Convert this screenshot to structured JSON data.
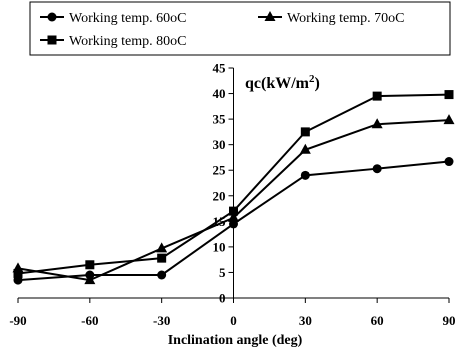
{
  "chart_data": {
    "type": "line",
    "title": "",
    "xlabel": "Inclination angle (deg)",
    "ylabel": "",
    "annotation": {
      "prefix": "qc(kW/m",
      "sup": "2",
      "suffix": ")"
    },
    "x": [
      -90,
      -60,
      -30,
      0,
      30,
      60,
      90
    ],
    "xlim": [
      -90,
      90
    ],
    "ylim": [
      0,
      45
    ],
    "xticks": [
      -90,
      -60,
      -30,
      0,
      30,
      60,
      90
    ],
    "yticks": [
      0,
      5,
      10,
      15,
      20,
      25,
      30,
      35,
      40,
      45
    ],
    "grid": false,
    "legend_position": "top",
    "series": [
      {
        "name": "Working temp. 60oC",
        "marker": "circle",
        "values": [
          3.5,
          4.5,
          4.5,
          14.5,
          24,
          25.3,
          26.7
        ]
      },
      {
        "name": "Working temp. 70oC",
        "marker": "triangle",
        "values": [
          5.8,
          3.5,
          9.7,
          15.7,
          29,
          34,
          34.8
        ]
      },
      {
        "name": "Working temp. 80oC",
        "marker": "square",
        "values": [
          4.8,
          6.5,
          7.8,
          17,
          32.5,
          39.5,
          39.8
        ]
      }
    ],
    "colors": {
      "line": "#000000"
    }
  }
}
